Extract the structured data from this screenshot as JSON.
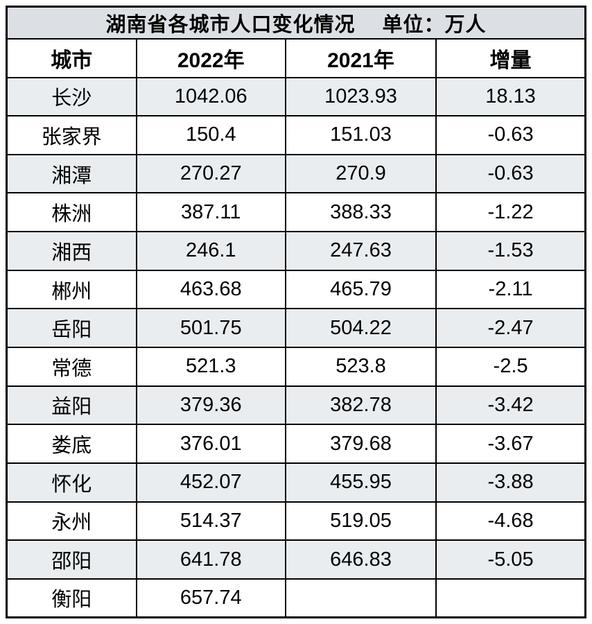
{
  "table": {
    "title": "湖南省各城市人口变化情况　 单位：万人",
    "columns": [
      "城市",
      "2022年",
      "2021年",
      "增量"
    ],
    "rows": [
      [
        "长沙",
        "1042.06",
        "1023.93",
        "18.13"
      ],
      [
        "张家界",
        "150.4",
        "151.03",
        "-0.63"
      ],
      [
        "湘潭",
        "270.27",
        "270.9",
        "-0.63"
      ],
      [
        "株洲",
        "387.11",
        "388.33",
        "-1.22"
      ],
      [
        "湘西",
        "246.1",
        "247.63",
        "-1.53"
      ],
      [
        "郴州",
        "463.68",
        "465.79",
        "-2.11"
      ],
      [
        "岳阳",
        "501.75",
        "504.22",
        "-2.47"
      ],
      [
        "常德",
        "521.3",
        "523.8",
        "-2.5"
      ],
      [
        "益阳",
        "379.36",
        "382.78",
        "-3.42"
      ],
      [
        "娄底",
        "376.01",
        "379.68",
        "-3.67"
      ],
      [
        "怀化",
        "452.07",
        "455.95",
        "-3.88"
      ],
      [
        "永州",
        "514.37",
        "519.05",
        "-4.68"
      ],
      [
        "邵阳",
        "641.78",
        "646.83",
        "-5.05"
      ],
      [
        "衡阳",
        "657.74",
        "",
        ""
      ]
    ]
  },
  "colors": {
    "title_background": "#dce0e4",
    "stripe_background": "#e9edf0",
    "row_background": "#ffffff",
    "border": "#000000",
    "text": "#000000"
  },
  "chart_data": {
    "type": "table",
    "title": "湖南省各城市人口变化情况",
    "unit": "万人",
    "columns": [
      "城市",
      "2022年",
      "2021年",
      "增量"
    ],
    "rows": [
      [
        "长沙",
        1042.06,
        1023.93,
        18.13
      ],
      [
        "张家界",
        150.4,
        151.03,
        -0.63
      ],
      [
        "湘潭",
        270.27,
        270.9,
        -0.63
      ],
      [
        "株洲",
        387.11,
        388.33,
        -1.22
      ],
      [
        "湘西",
        246.1,
        247.63,
        -1.53
      ],
      [
        "郴州",
        463.68,
        465.79,
        -2.11
      ],
      [
        "岳阳",
        501.75,
        504.22,
        -2.47
      ],
      [
        "常德",
        521.3,
        523.8,
        -2.5
      ],
      [
        "益阳",
        379.36,
        382.78,
        -3.42
      ],
      [
        "娄底",
        376.01,
        379.68,
        -3.67
      ],
      [
        "怀化",
        452.07,
        455.95,
        -3.88
      ],
      [
        "永州",
        514.37,
        519.05,
        -4.68
      ],
      [
        "邵阳",
        641.78,
        646.83,
        -5.05
      ],
      [
        "衡阳",
        657.74,
        null,
        null
      ]
    ]
  }
}
